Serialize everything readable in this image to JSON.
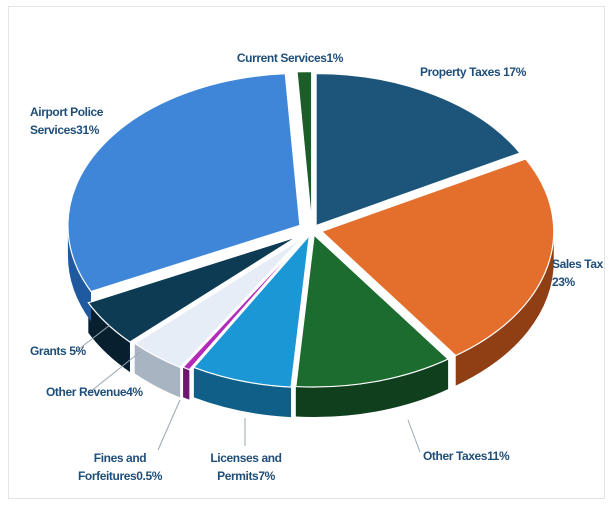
{
  "chart_data": {
    "type": "pie",
    "style": "3d-exploded",
    "title": "",
    "slices": [
      {
        "name": "Property Taxes",
        "value": 17,
        "label_lines": [
          "Property Taxes 17%"
        ],
        "color": "#1c5579",
        "side": "#123a54"
      },
      {
        "name": "Sales Tax",
        "value": 23,
        "label_lines": [
          "Sales Tax",
          "23%"
        ],
        "color": "#e46f2c",
        "side": "#8f3f13"
      },
      {
        "name": "Other Taxes",
        "value": 11,
        "label_lines": [
          "Other Taxes11%"
        ],
        "color": "#1c6b2f",
        "side": "#0f3f1c"
      },
      {
        "name": "Licenses and Permits",
        "value": 7,
        "label_lines": [
          "Licenses and",
          "Permits7%"
        ],
        "color": "#1b97d6",
        "side": "#0f5f88"
      },
      {
        "name": "Fines and Forfeitures",
        "value": 0.5,
        "label_lines": [
          "Fines and",
          "Forfeitures0.5%"
        ],
        "color": "#b42ab8",
        "side": "#6e1572"
      },
      {
        "name": "Other Revenue",
        "value": 4,
        "label_lines": [
          "Other Revenue4%"
        ],
        "color": "#e6edf6",
        "side": "#a9b4c2"
      },
      {
        "name": "Grants",
        "value": 5,
        "label_lines": [
          "Grants 5%"
        ],
        "color": "#0e3b54",
        "side": "#06202f"
      },
      {
        "name": "Airport Police Services",
        "value": 31,
        "label_lines": [
          "Airport Police",
          "Services31%"
        ],
        "color": "#3f86d9",
        "side": "#1f5aa0"
      },
      {
        "name": "Current Services",
        "value": 1,
        "label_lines": [
          "Current Services1%"
        ],
        "color": "#1b5e2a",
        "side": "#0d3515"
      }
    ]
  }
}
